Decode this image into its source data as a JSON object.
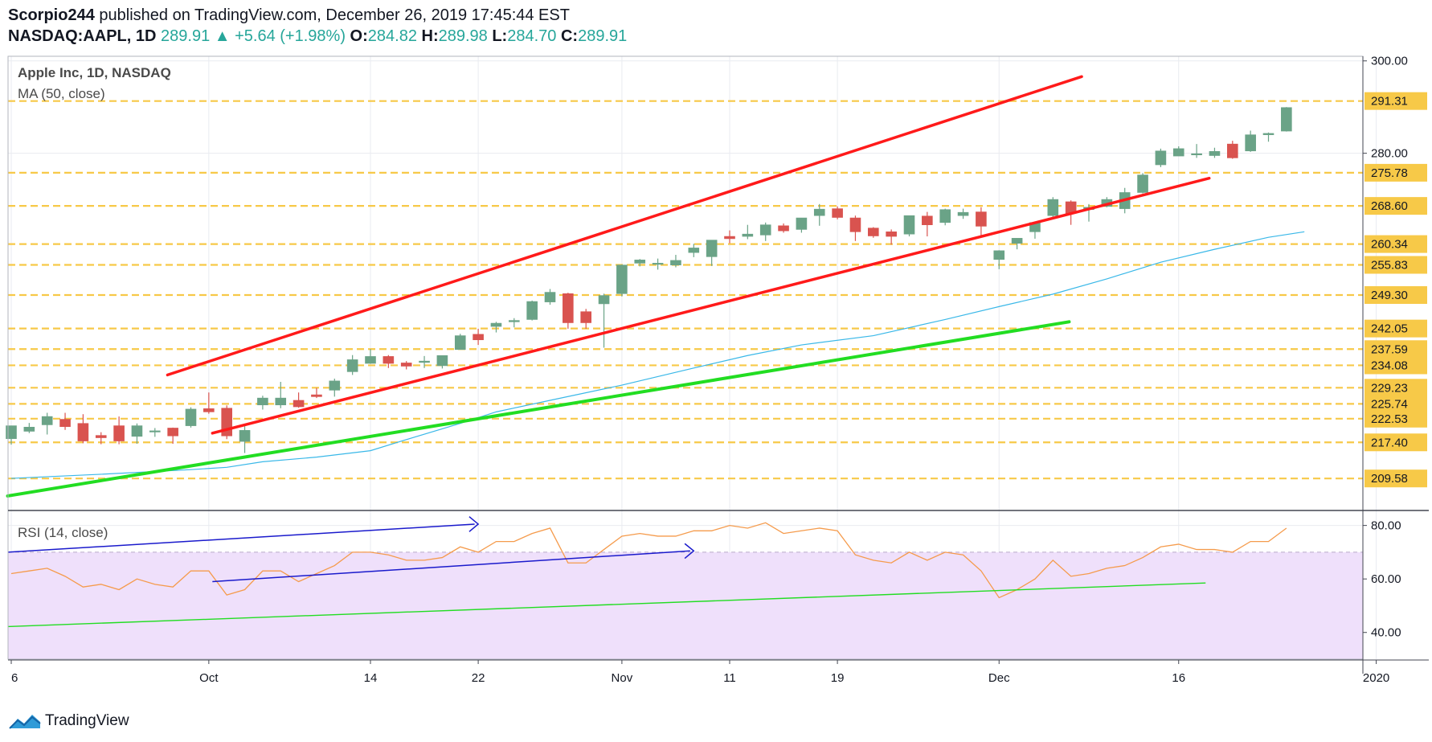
{
  "header": {
    "author": "Scorpio244",
    "published": "published on TradingView.com, December 26, 2019 17:45:44 EST",
    "symbol": "NASDAQ:AAPL, 1D",
    "last": "289.91",
    "change": "+5.64 (+1.98%)",
    "o_label": "O:",
    "o": "284.82",
    "h_label": "H:",
    "h": "289.98",
    "l_label": "L:",
    "l": "284.70",
    "c_label": "C:",
    "c": "289.91"
  },
  "footer": {
    "brand": "TradingView"
  },
  "colors": {
    "bull": "#6aa387",
    "bear": "#d9534f",
    "channel": "#ff1a1a",
    "trend": "#22dd22",
    "support": "#f7c948",
    "ma": "#3ab8e8",
    "rsi": "#f59b4c",
    "rsi_band": "#efe0fb",
    "divergence": "#1a1acc"
  },
  "chart_data": [
    {
      "type": "candlestick",
      "title": "Apple Inc, 1D, NASDAQ",
      "indicator": "MA (50, close)",
      "ylim": [
        203,
        301
      ],
      "x_ticks": [
        {
          "label": "6",
          "i": 0
        },
        {
          "label": "Oct",
          "i": 11
        },
        {
          "label": "14",
          "i": 20
        },
        {
          "label": "22",
          "i": 26
        },
        {
          "label": "Nov",
          "i": 34
        },
        {
          "label": "11",
          "i": 40
        },
        {
          "label": "19",
          "i": 46
        },
        {
          "label": "Dec",
          "i": 55
        },
        {
          "label": "16",
          "i": 65
        },
        {
          "label": "2020",
          "i": 76
        }
      ],
      "y_ticks": [
        300,
        280
      ],
      "y_tick_labels": [
        "300.00",
        "280.00"
      ],
      "price_labels": [
        "291.31",
        "275.78",
        "268.60",
        "260.34",
        "255.83",
        "249.30",
        "242.05",
        "237.59",
        "234.08",
        "229.23",
        "225.74",
        "222.53",
        "217.40",
        "209.58"
      ],
      "support_levels": [
        291.31,
        275.78,
        268.6,
        260.34,
        255.83,
        249.3,
        242.05,
        237.59,
        234.08,
        229.23,
        225.74,
        222.53,
        217.4,
        209.58
      ],
      "candles": [
        {
          "o": 218.2,
          "h": 221.0,
          "l": 216.9,
          "c": 221.0
        },
        {
          "o": 219.8,
          "h": 221.6,
          "l": 219.4,
          "c": 220.7
        },
        {
          "o": 221.2,
          "h": 223.8,
          "l": 219.1,
          "c": 223.0
        },
        {
          "o": 222.4,
          "h": 223.8,
          "l": 220.1,
          "c": 220.8
        },
        {
          "o": 221.5,
          "h": 223.5,
          "l": 217.2,
          "c": 217.7
        },
        {
          "o": 218.9,
          "h": 219.6,
          "l": 217.0,
          "c": 218.4
        },
        {
          "o": 221.0,
          "h": 223.0,
          "l": 217.0,
          "c": 217.7
        },
        {
          "o": 218.7,
          "h": 221.5,
          "l": 217.1,
          "c": 221.0
        },
        {
          "o": 219.8,
          "h": 220.5,
          "l": 218.6,
          "c": 219.9
        },
        {
          "o": 220.5,
          "h": 220.6,
          "l": 217.1,
          "c": 218.8
        },
        {
          "o": 221.0,
          "h": 225.0,
          "l": 220.6,
          "c": 224.6
        },
        {
          "o": 224.7,
          "h": 228.2,
          "l": 223.6,
          "c": 224.0
        },
        {
          "o": 224.8,
          "h": 225.4,
          "l": 218.1,
          "c": 218.8
        },
        {
          "o": 217.6,
          "h": 220.9,
          "l": 215.1,
          "c": 220.0
        },
        {
          "o": 225.5,
          "h": 227.5,
          "l": 224.5,
          "c": 227.0
        },
        {
          "o": 225.5,
          "h": 230.5,
          "l": 224.8,
          "c": 227.0
        },
        {
          "o": 226.5,
          "h": 228.2,
          "l": 224.9,
          "c": 225.1
        },
        {
          "o": 227.7,
          "h": 229.2,
          "l": 227.0,
          "c": 227.3
        },
        {
          "o": 228.7,
          "h": 231.2,
          "l": 227.3,
          "c": 230.7
        },
        {
          "o": 232.7,
          "h": 236.3,
          "l": 232.0,
          "c": 235.3
        },
        {
          "o": 234.5,
          "h": 237.6,
          "l": 234.4,
          "c": 236.0
        },
        {
          "o": 236.0,
          "h": 236.3,
          "l": 233.5,
          "c": 234.5
        },
        {
          "o": 234.6,
          "h": 235.0,
          "l": 233.2,
          "c": 233.9
        },
        {
          "o": 234.7,
          "h": 236.1,
          "l": 233.5,
          "c": 235.0
        },
        {
          "o": 234.0,
          "h": 236.2,
          "l": 233.4,
          "c": 236.2
        },
        {
          "o": 237.5,
          "h": 240.9,
          "l": 237.5,
          "c": 240.5
        },
        {
          "o": 240.8,
          "h": 242.0,
          "l": 238.5,
          "c": 239.6
        },
        {
          "o": 242.5,
          "h": 243.5,
          "l": 241.2,
          "c": 243.2
        },
        {
          "o": 243.5,
          "h": 244.3,
          "l": 242.3,
          "c": 243.8
        },
        {
          "o": 244.0,
          "h": 248.1,
          "l": 243.8,
          "c": 247.9
        },
        {
          "o": 247.8,
          "h": 250.6,
          "l": 247.2,
          "c": 249.9
        },
        {
          "o": 249.6,
          "h": 249.8,
          "l": 242.0,
          "c": 243.3
        },
        {
          "o": 245.7,
          "h": 246.3,
          "l": 242.0,
          "c": 243.3
        },
        {
          "o": 247.4,
          "h": 249.6,
          "l": 237.9,
          "c": 249.2
        },
        {
          "o": 249.6,
          "h": 255.9,
          "l": 249.0,
          "c": 255.8
        },
        {
          "o": 256.2,
          "h": 257.1,
          "l": 255.5,
          "c": 256.9
        },
        {
          "o": 256.0,
          "h": 257.2,
          "l": 254.8,
          "c": 256.2
        },
        {
          "o": 255.8,
          "h": 258.0,
          "l": 255.3,
          "c": 256.8
        },
        {
          "o": 258.5,
          "h": 260.4,
          "l": 257.5,
          "c": 259.5
        },
        {
          "o": 257.6,
          "h": 261.0,
          "l": 255.6,
          "c": 261.2
        },
        {
          "o": 262.0,
          "h": 263.3,
          "l": 260.5,
          "c": 261.5
        },
        {
          "o": 262.0,
          "h": 264.5,
          "l": 261.4,
          "c": 262.5
        },
        {
          "o": 262.3,
          "h": 265.0,
          "l": 261.0,
          "c": 264.5
        },
        {
          "o": 264.3,
          "h": 264.8,
          "l": 262.8,
          "c": 263.2
        },
        {
          "o": 263.5,
          "h": 266.0,
          "l": 262.8,
          "c": 266.0
        },
        {
          "o": 266.5,
          "h": 269.0,
          "l": 264.3,
          "c": 267.9
        },
        {
          "o": 268.0,
          "h": 268.5,
          "l": 265.7,
          "c": 266.1
        },
        {
          "o": 266.0,
          "h": 266.5,
          "l": 261.0,
          "c": 263.0
        },
        {
          "o": 263.8,
          "h": 264.0,
          "l": 261.7,
          "c": 262.1
        },
        {
          "o": 263.0,
          "h": 263.5,
          "l": 260.2,
          "c": 262.0
        },
        {
          "o": 262.5,
          "h": 266.5,
          "l": 262.0,
          "c": 266.5
        },
        {
          "o": 266.4,
          "h": 267.3,
          "l": 262.0,
          "c": 264.5
        },
        {
          "o": 265.0,
          "h": 268.0,
          "l": 264.4,
          "c": 267.8
        },
        {
          "o": 266.5,
          "h": 268.0,
          "l": 265.8,
          "c": 267.2
        },
        {
          "o": 267.3,
          "h": 268.3,
          "l": 262.0,
          "c": 264.2
        },
        {
          "o": 257.0,
          "h": 259.0,
          "l": 254.9,
          "c": 258.9
        },
        {
          "o": 260.5,
          "h": 261.6,
          "l": 259.2,
          "c": 261.6
        },
        {
          "o": 263.0,
          "h": 265.0,
          "l": 261.5,
          "c": 265.0
        },
        {
          "o": 266.5,
          "h": 270.5,
          "l": 266.0,
          "c": 270.0
        },
        {
          "o": 269.5,
          "h": 269.8,
          "l": 264.5,
          "c": 267.0
        },
        {
          "o": 267.8,
          "h": 269.0,
          "l": 265.2,
          "c": 268.3
        },
        {
          "o": 268.5,
          "h": 270.5,
          "l": 268.3,
          "c": 270.0
        },
        {
          "o": 268.0,
          "h": 272.5,
          "l": 267.0,
          "c": 271.5
        },
        {
          "o": 271.5,
          "h": 275.7,
          "l": 271.3,
          "c": 275.3
        },
        {
          "o": 277.5,
          "h": 281.0,
          "l": 277.0,
          "c": 280.5
        },
        {
          "o": 279.4,
          "h": 281.5,
          "l": 279.4,
          "c": 281.0
        },
        {
          "o": 279.8,
          "h": 282.0,
          "l": 279.0,
          "c": 279.9
        },
        {
          "o": 279.5,
          "h": 281.2,
          "l": 279.0,
          "c": 280.4
        },
        {
          "o": 282.0,
          "h": 282.7,
          "l": 278.8,
          "c": 279.0
        },
        {
          "o": 280.5,
          "h": 284.9,
          "l": 280.3,
          "c": 284.0
        },
        {
          "o": 284.0,
          "h": 284.5,
          "l": 282.5,
          "c": 284.3
        },
        {
          "o": 284.8,
          "h": 290.0,
          "l": 284.7,
          "c": 289.9
        }
      ],
      "ma50": [
        [
          0,
          209.6
        ],
        [
          5,
          210.5
        ],
        [
          10,
          211.5
        ],
        [
          12,
          212.0
        ],
        [
          14,
          213.2
        ],
        [
          17,
          214.2
        ],
        [
          20,
          215.6
        ],
        [
          22,
          218.0
        ],
        [
          25,
          221.5
        ],
        [
          27,
          224.0
        ],
        [
          30,
          226.5
        ],
        [
          34,
          229.8
        ],
        [
          38,
          233.5
        ],
        [
          41,
          236.2
        ],
        [
          44,
          238.5
        ],
        [
          48,
          240.5
        ],
        [
          52,
          244.0
        ],
        [
          55,
          246.8
        ],
        [
          58,
          249.5
        ],
        [
          61,
          252.8
        ],
        [
          64,
          256.4
        ],
        [
          67,
          259.2
        ],
        [
          70,
          261.8
        ],
        [
          72,
          263.0
        ]
      ]
    },
    {
      "type": "line",
      "title": "RSI (14, close)",
      "ylim": [
        30,
        85
      ],
      "y_ticks": [
        80,
        60,
        40
      ],
      "y_tick_labels": [
        "80.00",
        "60.00",
        "40.00"
      ],
      "band": [
        30,
        70
      ],
      "rsi": [
        62,
        63,
        64,
        61,
        57,
        58,
        56,
        60,
        58,
        57,
        63,
        63,
        54,
        56,
        63,
        63,
        59,
        62,
        65,
        70,
        70,
        69,
        67,
        67,
        68,
        72,
        70,
        74,
        74,
        77,
        79,
        66,
        66,
        71,
        76,
        77,
        76,
        76,
        78,
        78,
        80,
        79,
        81,
        77,
        78,
        79,
        78,
        69,
        67,
        66,
        70,
        67,
        70,
        69,
        63,
        53,
        56,
        60,
        67,
        61,
        62,
        64,
        65,
        68,
        72,
        73,
        71,
        71,
        70,
        74,
        74,
        79
      ]
    }
  ]
}
